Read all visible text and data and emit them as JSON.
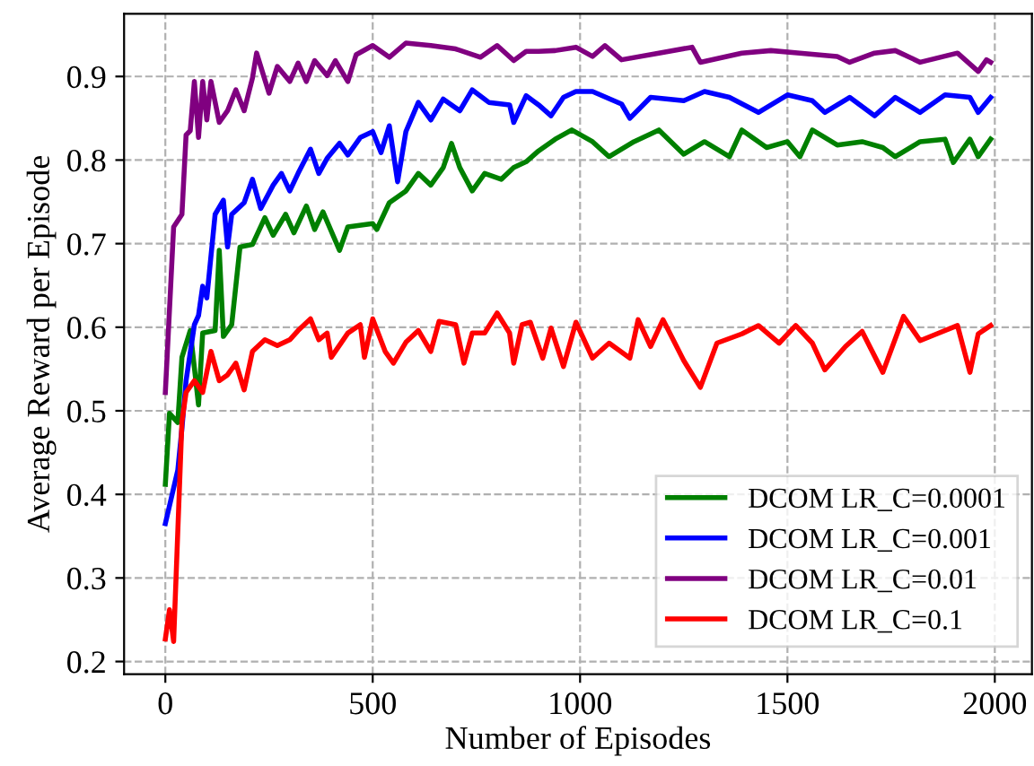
{
  "chart_data": {
    "type": "line",
    "xlabel": "Number of Episodes",
    "ylabel": "Average Reward per Episode",
    "xlim": [
      -99.5,
      2089.5
    ],
    "xticks": [
      0,
      500,
      1000,
      1500,
      2000
    ],
    "ylim": [
      0.185,
      0.975
    ],
    "yticks": [
      0.2,
      0.3,
      0.4,
      0.5,
      0.6,
      0.7,
      0.8,
      0.9
    ],
    "grid": true,
    "legend": "bottom right",
    "line_style": "solid",
    "series": [
      {
        "name": "DCOM LR_C=0.0001",
        "color": "#008000",
        "x": [
          0,
          10,
          30,
          40,
          60,
          80,
          90,
          120,
          130,
          140,
          160,
          180,
          210,
          240,
          260,
          290,
          310,
          340,
          360,
          380,
          420,
          440,
          500,
          510,
          540,
          560,
          580,
          610,
          640,
          670,
          690,
          710,
          740,
          770,
          810,
          840,
          870,
          900,
          940,
          980,
          1030,
          1070,
          1130,
          1190,
          1250,
          1300,
          1360,
          1390,
          1450,
          1500,
          1530,
          1560,
          1620,
          1680,
          1730,
          1760,
          1820,
          1880,
          1900,
          1940,
          1960,
          1990
        ],
        "values": [
          0.412,
          0.497,
          0.486,
          0.564,
          0.596,
          0.507,
          0.593,
          0.596,
          0.692,
          0.589,
          0.603,
          0.696,
          0.699,
          0.731,
          0.71,
          0.735,
          0.713,
          0.745,
          0.717,
          0.738,
          0.692,
          0.72,
          0.724,
          0.717,
          0.749,
          0.756,
          0.763,
          0.784,
          0.77,
          0.791,
          0.82,
          0.791,
          0.763,
          0.784,
          0.777,
          0.791,
          0.798,
          0.811,
          0.825,
          0.836,
          0.822,
          0.804,
          0.822,
          0.836,
          0.807,
          0.822,
          0.804,
          0.836,
          0.815,
          0.822,
          0.804,
          0.836,
          0.818,
          0.822,
          0.815,
          0.804,
          0.822,
          0.825,
          0.797,
          0.825,
          0.804,
          0.825
        ]
      },
      {
        "name": "DCOM LR_C=0.001",
        "color": "#0000ff",
        "x": [
          0,
          30,
          40,
          50,
          70,
          80,
          90,
          100,
          120,
          140,
          150,
          160,
          190,
          210,
          230,
          260,
          280,
          300,
          320,
          350,
          370,
          390,
          420,
          440,
          470,
          500,
          520,
          540,
          560,
          580,
          610,
          640,
          670,
          710,
          740,
          780,
          830,
          840,
          870,
          900,
          930,
          960,
          990,
          1030,
          1100,
          1120,
          1170,
          1250,
          1300,
          1360,
          1430,
          1500,
          1560,
          1590,
          1650,
          1710,
          1760,
          1820,
          1880,
          1940,
          1960,
          1990
        ],
        "values": [
          0.365,
          0.429,
          0.479,
          0.536,
          0.603,
          0.614,
          0.649,
          0.635,
          0.735,
          0.752,
          0.696,
          0.735,
          0.749,
          0.777,
          0.742,
          0.77,
          0.784,
          0.763,
          0.784,
          0.813,
          0.784,
          0.802,
          0.82,
          0.806,
          0.827,
          0.834,
          0.809,
          0.841,
          0.774,
          0.834,
          0.869,
          0.848,
          0.873,
          0.859,
          0.884,
          0.869,
          0.866,
          0.845,
          0.877,
          0.866,
          0.853,
          0.875,
          0.882,
          0.882,
          0.867,
          0.85,
          0.875,
          0.871,
          0.882,
          0.875,
          0.857,
          0.878,
          0.871,
          0.857,
          0.875,
          0.853,
          0.875,
          0.857,
          0.878,
          0.875,
          0.857,
          0.875
        ]
      },
      {
        "name": "DCOM LR_C=0.01",
        "color": "#800080",
        "x": [
          0,
          20,
          40,
          50,
          60,
          70,
          80,
          90,
          100,
          110,
          130,
          150,
          170,
          190,
          210,
          220,
          250,
          270,
          300,
          320,
          340,
          360,
          390,
          410,
          440,
          460,
          500,
          540,
          580,
          640,
          700,
          760,
          800,
          840,
          870,
          900,
          940,
          990,
          1030,
          1060,
          1100,
          1190,
          1270,
          1290,
          1390,
          1460,
          1530,
          1620,
          1650,
          1710,
          1760,
          1820,
          1910,
          1960,
          1980,
          1990
        ],
        "values": [
          0.522,
          0.72,
          0.735,
          0.83,
          0.835,
          0.894,
          0.827,
          0.894,
          0.848,
          0.894,
          0.845,
          0.859,
          0.884,
          0.859,
          0.898,
          0.928,
          0.88,
          0.912,
          0.894,
          0.916,
          0.894,
          0.919,
          0.901,
          0.919,
          0.894,
          0.926,
          0.937,
          0.923,
          0.94,
          0.937,
          0.933,
          0.923,
          0.937,
          0.919,
          0.93,
          0.93,
          0.931,
          0.935,
          0.924,
          0.937,
          0.92,
          0.928,
          0.935,
          0.917,
          0.928,
          0.931,
          0.928,
          0.924,
          0.917,
          0.928,
          0.931,
          0.917,
          0.928,
          0.906,
          0.92,
          0.917
        ]
      },
      {
        "name": "DCOM LR_C=0.1",
        "color": "#ff0000",
        "x": [
          0,
          10,
          20,
          40,
          50,
          70,
          90,
          110,
          130,
          150,
          170,
          190,
          210,
          240,
          270,
          300,
          320,
          350,
          370,
          390,
          400,
          440,
          470,
          480,
          500,
          530,
          550,
          580,
          610,
          640,
          660,
          700,
          720,
          740,
          770,
          800,
          830,
          840,
          860,
          880,
          910,
          930,
          960,
          990,
          1030,
          1070,
          1120,
          1140,
          1170,
          1200,
          1250,
          1290,
          1330,
          1390,
          1430,
          1480,
          1520,
          1560,
          1590,
          1640,
          1680,
          1730,
          1780,
          1820,
          1860,
          1910,
          1940,
          1960,
          1990
        ],
        "values": [
          0.227,
          0.262,
          0.224,
          0.487,
          0.522,
          0.536,
          0.522,
          0.571,
          0.536,
          0.543,
          0.557,
          0.525,
          0.571,
          0.585,
          0.578,
          0.585,
          0.596,
          0.61,
          0.585,
          0.593,
          0.564,
          0.593,
          0.603,
          0.564,
          0.61,
          0.571,
          0.557,
          0.582,
          0.596,
          0.571,
          0.607,
          0.603,
          0.557,
          0.593,
          0.593,
          0.617,
          0.593,
          0.557,
          0.603,
          0.606,
          0.563,
          0.599,
          0.553,
          0.606,
          0.563,
          0.581,
          0.563,
          0.609,
          0.577,
          0.609,
          0.56,
          0.528,
          0.581,
          0.592,
          0.602,
          0.581,
          0.602,
          0.581,
          0.549,
          0.577,
          0.595,
          0.546,
          0.613,
          0.584,
          0.592,
          0.602,
          0.546,
          0.592,
          0.602
        ]
      }
    ]
  }
}
